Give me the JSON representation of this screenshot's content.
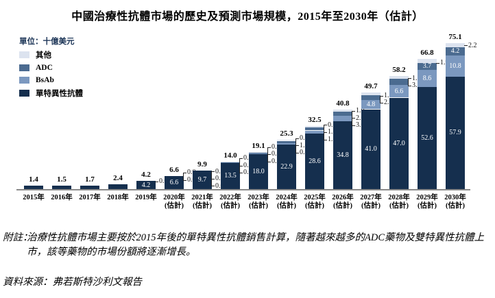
{
  "title": "中國治療性抗體市場的歷史及預測市場規模，2015年至2030年（估計）",
  "note_label": "附註：",
  "note_text": "治療性抗體市場主要按於2015年後的單特異性抗體銷售計算，隨著越來越多的ADC藥物及雙特異性抗體上市，該等藥物的市場份額將逐漸增長。",
  "source_text": "資料來源：弗若斯特沙利文報告",
  "chart_data": {
    "type": "bar",
    "stacked": true,
    "title": "中國治療性抗體市場的歷史及預測市場規模，2015年至2030年（估計）",
    "unit_label": "單位：十億美元",
    "ylabel": "十億美元",
    "ylim": [
      0,
      80
    ],
    "grid": false,
    "legend_position": "top-left",
    "estimated_suffix": "(估計)",
    "legend": [
      {
        "key": "other",
        "label": "其他"
      },
      {
        "key": "adc",
        "label": "ADC"
      },
      {
        "key": "bsab",
        "label": "BsAb"
      },
      {
        "key": "mono",
        "label": "單特異性抗體"
      }
    ],
    "colors": {
      "other": "#dce3ef",
      "adc": "#4b6b90",
      "bsab": "#7b98bf",
      "mono": "#152f4e",
      "axis": "#8a8a8a"
    },
    "stack_order": [
      "mono",
      "bsab",
      "adc",
      "other"
    ],
    "bars": [
      {
        "year": "2015年",
        "estimated": false,
        "total": "1.4",
        "values": {
          "mono": 1.4,
          "bsab": 0,
          "adc": 0,
          "other": 0
        },
        "inside": {},
        "side": []
      },
      {
        "year": "2016年",
        "estimated": false,
        "total": "1.5",
        "values": {
          "mono": 1.5,
          "bsab": 0,
          "adc": 0,
          "other": 0
        },
        "inside": {},
        "side": []
      },
      {
        "year": "2017年",
        "estimated": false,
        "total": "1.7",
        "values": {
          "mono": 1.7,
          "bsab": 0,
          "adc": 0,
          "other": 0
        },
        "inside": {},
        "side": []
      },
      {
        "year": "2018年",
        "estimated": false,
        "total": "2.4",
        "values": {
          "mono": 2.4,
          "bsab": 0,
          "adc": 0,
          "other": 0
        },
        "inside": {},
        "side": []
      },
      {
        "year": "2019年",
        "estimated": false,
        "total": "4.2",
        "values": {
          "mono": 4.2,
          "bsab": 0.0,
          "adc": 0,
          "other": 0
        },
        "inside": {
          "mono": "4.2"
        },
        "side": [
          {
            "series": "bsab",
            "text": "0.0"
          }
        ]
      },
      {
        "year": "2020年",
        "estimated": true,
        "total": "6.6",
        "values": {
          "mono": 6.6,
          "bsab": 0.0,
          "adc": 0.0,
          "other": 0
        },
        "inside": {
          "mono": "6.6"
        },
        "side": [
          {
            "series": "adc",
            "text": "0.0"
          },
          {
            "series": "bsab",
            "text": "0.0"
          }
        ]
      },
      {
        "year": "2021年",
        "estimated": true,
        "total": "9.9",
        "values": {
          "mono": 9.7,
          "bsab": 0.0,
          "adc": 0.1,
          "other": 0.1
        },
        "inside": {
          "mono": "9.7"
        },
        "side": [
          {
            "series": "other",
            "text": "0.1"
          },
          {
            "series": "adc",
            "text": "0.1"
          },
          {
            "series": "bsab",
            "text": "0.0"
          }
        ]
      },
      {
        "year": "2022年",
        "estimated": true,
        "total": "14.0",
        "values": {
          "mono": 13.5,
          "bsab": 0.0,
          "adc": 0.3,
          "other": 0.2
        },
        "inside": {
          "mono": "13.5"
        },
        "side": [
          {
            "series": "other",
            "text": "0.2"
          },
          {
            "series": "adc",
            "text": "0.3"
          },
          {
            "series": "bsab",
            "text": "0.0"
          }
        ]
      },
      {
        "year": "2023年",
        "estimated": true,
        "total": "19.1",
        "values": {
          "mono": 18.0,
          "bsab": 0.2,
          "adc": 0.6,
          "other": 0.3
        },
        "inside": {
          "mono": "18.0"
        },
        "side": [
          {
            "series": "other",
            "text": "0.3"
          },
          {
            "series": "adc",
            "text": "0.6"
          },
          {
            "series": "bsab",
            "text": "0.2"
          }
        ]
      },
      {
        "year": "2024年",
        "estimated": true,
        "total": "25.3",
        "values": {
          "mono": 22.9,
          "bsab": 0.8,
          "adc": 1.1,
          "other": 0.5
        },
        "inside": {
          "mono": "22.9"
        },
        "side": [
          {
            "series": "other",
            "text": "0.5"
          },
          {
            "series": "adc",
            "text": "1.1"
          },
          {
            "series": "bsab",
            "text": "0.8"
          }
        ]
      },
      {
        "year": "2025年",
        "estimated": true,
        "total": "32.5",
        "values": {
          "mono": 28.6,
          "bsab": 1.5,
          "adc": 1.7,
          "other": 0.7
        },
        "inside": {
          "mono": "28.6"
        },
        "side": [
          {
            "series": "other",
            "text": "0.7"
          },
          {
            "series": "adc",
            "text": "1.7"
          },
          {
            "series": "bsab",
            "text": "1.5"
          }
        ]
      },
      {
        "year": "2026年",
        "estimated": true,
        "total": "40.8",
        "values": {
          "mono": 34.8,
          "bsab": 3.0,
          "adc": 2.0,
          "other": 1.0
        },
        "inside": {
          "mono": "34.8"
        },
        "side": [
          {
            "series": "other",
            "text": "1.0"
          },
          {
            "series": "adc",
            "text": "2.0"
          },
          {
            "series": "bsab",
            "text": "3.0"
          }
        ]
      },
      {
        "year": "2027年",
        "estimated": true,
        "total": "49.7",
        "values": {
          "mono": 41.0,
          "bsab": 4.8,
          "adc": 2.6,
          "other": 1.3
        },
        "inside": {
          "mono": "41.0",
          "bsab": "4.8"
        },
        "side": [
          {
            "series": "other",
            "text": "1.3"
          },
          {
            "series": "adc",
            "text": "2.6"
          }
        ]
      },
      {
        "year": "2028年",
        "estimated": true,
        "total": "58.2",
        "values": {
          "mono": 47.0,
          "bsab": 6.6,
          "adc": 3.1,
          "other": 1.5
        },
        "inside": {
          "mono": "47.0",
          "bsab": "6.6"
        },
        "side": [
          {
            "series": "other",
            "text": "1.5"
          },
          {
            "series": "adc",
            "text": "3.1"
          }
        ]
      },
      {
        "year": "2029年",
        "estimated": true,
        "total": "66.8",
        "values": {
          "mono": 52.6,
          "bsab": 8.6,
          "adc": 3.7,
          "other": 1.9
        },
        "inside": {
          "mono": "52.6",
          "bsab": "8.6",
          "adc": "3.7"
        },
        "side": [
          {
            "series": "other",
            "text": "1.9"
          }
        ]
      },
      {
        "year": "2030年",
        "estimated": true,
        "total": "75.1",
        "values": {
          "mono": 57.9,
          "bsab": 10.8,
          "adc": 4.2,
          "other": 2.2
        },
        "inside": {
          "mono": "57.9",
          "bsab": "10.8",
          "adc": "4.2"
        },
        "side": [
          {
            "series": "other",
            "text": "2.2"
          }
        ]
      }
    ]
  }
}
